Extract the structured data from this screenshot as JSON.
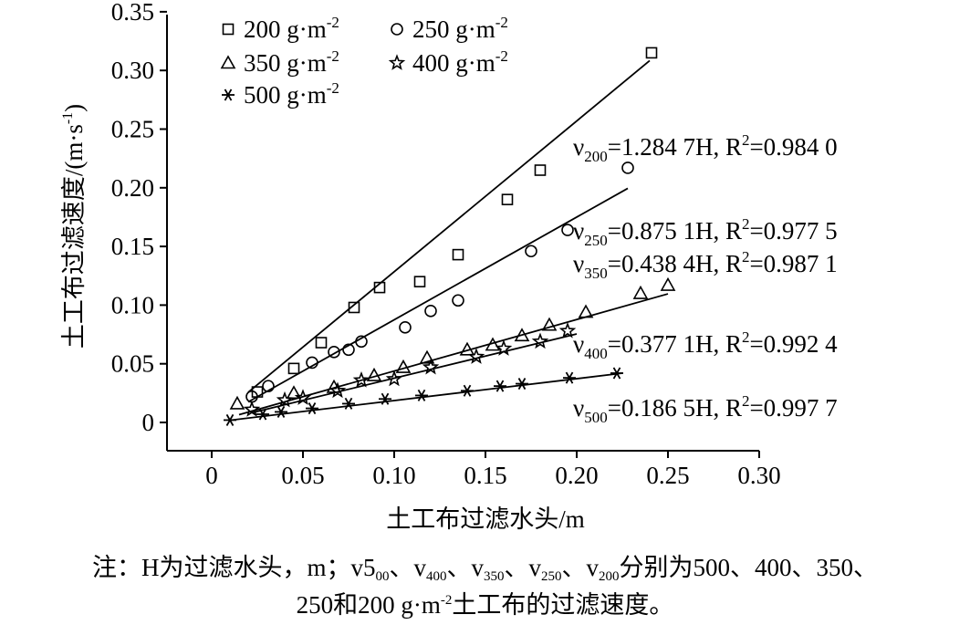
{
  "chart_data": {
    "type": "scatter",
    "xlabel": "土工布过滤水头/m",
    "ylabel": "土工布过滤速度/(m·s",
    "ylabel_sup": "-1",
    "ylabel_end": ")",
    "xlim": [
      0,
      0.3
    ],
    "ylim": [
      0,
      0.35
    ],
    "xticks": [
      "0",
      "0.05",
      "0.10",
      "0.15",
      "0.20",
      "0.25",
      "0.30"
    ],
    "yticks": [
      "0",
      "0.05",
      "0.10",
      "0.15",
      "0.20",
      "0.25",
      "0.30",
      "0.35"
    ],
    "grid": false,
    "legend_position": "top-left",
    "series": [
      {
        "name": "200 g·m⁻²",
        "marker": "square",
        "x": [
          0.025,
          0.045,
          0.06,
          0.078,
          0.092,
          0.114,
          0.135,
          0.162,
          0.18,
          0.241
        ],
        "y": [
          0.026,
          0.046,
          0.068,
          0.098,
          0.115,
          0.12,
          0.143,
          0.19,
          0.215,
          0.315
        ],
        "fit": {
          "slope": 1.2847,
          "x_range": [
            0.02,
            0.24
          ],
          "label_prefix": "ν",
          "label_sub": "200",
          "label_text": "=1.284 7H, R",
          "label_sup": "2",
          "label_r2": "=0.984 0"
        }
      },
      {
        "name": "250 g·m⁻²",
        "marker": "circle",
        "x": [
          0.022,
          0.031,
          0.055,
          0.067,
          0.075,
          0.082,
          0.106,
          0.12,
          0.135,
          0.175,
          0.195,
          0.228
        ],
        "y": [
          0.022,
          0.031,
          0.051,
          0.06,
          0.062,
          0.069,
          0.081,
          0.095,
          0.104,
          0.146,
          0.164,
          0.217
        ],
        "fit": {
          "slope": 0.8751,
          "x_range": [
            0.02,
            0.228
          ],
          "label_prefix": "ν",
          "label_sub": "250",
          "label_text": "=0.875 1H, R",
          "label_sup": "2",
          "label_r2": "=0.977 5"
        }
      },
      {
        "name": "350 g·m⁻²",
        "marker": "triangle",
        "x": [
          0.014,
          0.045,
          0.067,
          0.089,
          0.105,
          0.118,
          0.14,
          0.154,
          0.17,
          0.185,
          0.205,
          0.235,
          0.25
        ],
        "y": [
          0.016,
          0.025,
          0.03,
          0.04,
          0.047,
          0.055,
          0.062,
          0.066,
          0.074,
          0.083,
          0.094,
          0.11,
          0.117
        ],
        "fit": {
          "slope": 0.4384,
          "x_range": [
            0.015,
            0.25
          ],
          "label_prefix": "ν",
          "label_sub": "350",
          "label_text": "=0.438 4H, R",
          "label_sup": "2",
          "label_r2": "=0.987 1"
        }
      },
      {
        "name": "400 g·m⁻²",
        "marker": "star",
        "x": [
          0.022,
          0.04,
          0.05,
          0.069,
          0.082,
          0.1,
          0.12,
          0.145,
          0.16,
          0.18,
          0.195
        ],
        "y": [
          0.011,
          0.019,
          0.021,
          0.027,
          0.036,
          0.037,
          0.047,
          0.056,
          0.063,
          0.069,
          0.078
        ],
        "fit": {
          "slope": 0.3771,
          "x_range": [
            0.022,
            0.2
          ],
          "label_prefix": "ν",
          "label_sub": "400",
          "label_text": "=0.377 1H, R",
          "label_sup": "2",
          "label_r2": "=0.992 4"
        }
      },
      {
        "name": "500 g·m⁻²",
        "marker": "asterisk",
        "x": [
          0.01,
          0.028,
          0.038,
          0.055,
          0.075,
          0.095,
          0.115,
          0.14,
          0.158,
          0.17,
          0.196,
          0.222
        ],
        "y": [
          0.002,
          0.007,
          0.009,
          0.012,
          0.016,
          0.02,
          0.023,
          0.027,
          0.031,
          0.033,
          0.038,
          0.042
        ],
        "fit": {
          "slope": 0.1865,
          "x_range": [
            0.01,
            0.225
          ],
          "label_prefix": "ν",
          "label_sub": "500",
          "label_text": "=0.186 5H, R",
          "label_sup": "2",
          "label_r2": "=0.997 7"
        }
      }
    ]
  },
  "note": {
    "line1_a": "注：H为过滤水头，m；v5",
    "line1_a_sub": "00",
    "line1_b": "、v",
    "line1_b_sub": "400",
    "line1_c": "、v",
    "line1_c_sub": "350",
    "line1_d": "、v",
    "line1_d_sub": "250",
    "line1_e": "、v",
    "line1_e_sub": "200",
    "line1_f": "分别为500、400、350、",
    "line2_a": "250和200 g·m",
    "line2_sup": "-2",
    "line2_b": "土工布的过滤速度。"
  }
}
